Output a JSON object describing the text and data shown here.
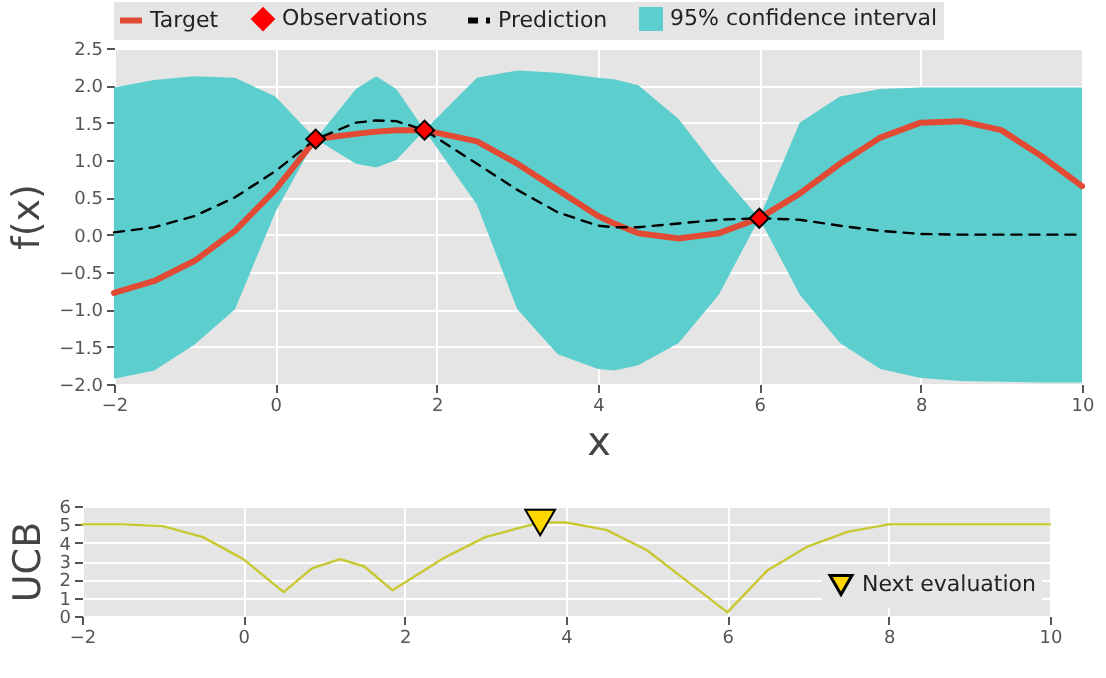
{
  "chart_data": [
    {
      "type": "line",
      "xlabel": "x",
      "ylabel": "f(x)",
      "xlim": [
        -2,
        10
      ],
      "xticks": [
        {
          "value": -2,
          "label": "−2"
        },
        0,
        2,
        4,
        6,
        8,
        10
      ],
      "ylim": [
        -2,
        2.5
      ],
      "yticks": [
        {
          "value": -2,
          "label": "−2.0"
        },
        {
          "value": -1.5,
          "label": "−1.5"
        },
        {
          "value": -1,
          "label": "−1.0"
        },
        {
          "value": -0.5,
          "label": "−0.5"
        },
        {
          "value": 0,
          "label": "0.0"
        },
        0.5,
        {
          "value": 1,
          "label": "1.0"
        },
        1.5,
        {
          "value": 2,
          "label": "2.0"
        },
        2.5
      ],
      "grid": true,
      "legend": "top",
      "x": [
        -2,
        -1.5,
        -1,
        -0.5,
        0,
        0.5,
        1,
        1.25,
        1.5,
        1.85,
        2.5,
        3,
        3.5,
        4,
        4.2,
        4.5,
        5,
        5.5,
        6,
        6.5,
        7,
        7.5,
        8,
        8.5,
        9,
        9.5,
        10
      ],
      "series": [
        {
          "name": "Target",
          "color": "#e24a33",
          "values": [
            -0.78,
            -0.62,
            -0.35,
            0.05,
            0.6,
            1.28,
            1.35,
            1.38,
            1.4,
            1.4,
            1.25,
            0.95,
            0.6,
            0.25,
            0.15,
            0.02,
            -0.05,
            0.02,
            0.22,
            0.55,
            0.95,
            1.3,
            1.5,
            1.52,
            1.4,
            1.05,
            0.65
          ],
          "type": "line"
        },
        {
          "name": "Observations",
          "type": "scatter",
          "marker": "diamond",
          "color": "#ff0000",
          "x": [
            0.5,
            1.85,
            6
          ],
          "values": [
            1.28,
            1.4,
            0.22
          ]
        },
        {
          "name": "Prediction",
          "line_style": "dashed",
          "color": "#000000",
          "values": [
            0.03,
            0.1,
            0.25,
            0.5,
            0.85,
            1.28,
            1.5,
            1.53,
            1.52,
            1.4,
            0.95,
            0.6,
            0.3,
            0.12,
            0.1,
            0.1,
            0.15,
            0.2,
            0.22,
            0.2,
            0.12,
            0.05,
            0.01,
            0,
            0,
            0,
            0
          ]
        },
        {
          "name": "95% confidence interval",
          "type": "area",
          "color": "#5ccece",
          "values": [
            null,
            null,
            null,
            null,
            null,
            null,
            null,
            null,
            null,
            null,
            null,
            null,
            null,
            null,
            null,
            null,
            null,
            null,
            null,
            null,
            null,
            null,
            null,
            null,
            null,
            null,
            null
          ],
          "upper": [
            1.97,
            2.07,
            2.12,
            2.1,
            1.85,
            1.28,
            1.95,
            2.12,
            1.95,
            1.4,
            2.1,
            2.2,
            2.17,
            2.1,
            2.08,
            2.0,
            1.55,
            0.85,
            0.22,
            1.5,
            1.85,
            1.95,
            1.97,
            1.97,
            1.97,
            1.97,
            1.97
          ],
          "lower": [
            -1.93,
            -1.82,
            -1.47,
            -1.0,
            0.3,
            1.28,
            0.95,
            0.9,
            1.0,
            1.4,
            0.4,
            -1.0,
            -1.6,
            -1.8,
            -1.82,
            -1.75,
            -1.45,
            -0.8,
            0.22,
            -0.8,
            -1.45,
            -1.8,
            -1.92,
            -1.96,
            -1.97,
            -1.98,
            -1.98
          ]
        }
      ]
    },
    {
      "type": "line",
      "ylabel": "UCB",
      "xlim": [
        -2,
        10
      ],
      "xticks": [
        {
          "value": -2,
          "label": "−2"
        },
        0,
        2,
        4,
        6,
        8,
        10
      ],
      "ylim": [
        0,
        6
      ],
      "yticks": [
        0,
        1,
        2,
        3,
        4,
        5,
        6
      ],
      "grid": true,
      "legend": "bottom right",
      "x": [
        -2,
        -1.5,
        -1,
        -0.5,
        0,
        0.25,
        0.5,
        0.85,
        1.2,
        1.5,
        1.85,
        2.5,
        3,
        3.5,
        3.7,
        4,
        4.5,
        5,
        5.5,
        6,
        6.5,
        7,
        7.5,
        8,
        9,
        10
      ],
      "series": [
        {
          "color": "#c8c832",
          "values": [
            5.0,
            5.0,
            4.9,
            4.3,
            3.1,
            2.2,
            1.3,
            2.6,
            3.1,
            2.7,
            1.4,
            3.2,
            4.3,
            4.9,
            5.1,
            5.1,
            4.7,
            3.6,
            1.9,
            0.2,
            2.5,
            3.8,
            4.6,
            5.0,
            5.0,
            5.0
          ]
        },
        {
          "name": "Next evaluation",
          "type": "scatter",
          "marker": "triangle",
          "color": "#ffd700",
          "x": [
            3.68
          ],
          "values": [
            5.1
          ]
        }
      ]
    }
  ]
}
